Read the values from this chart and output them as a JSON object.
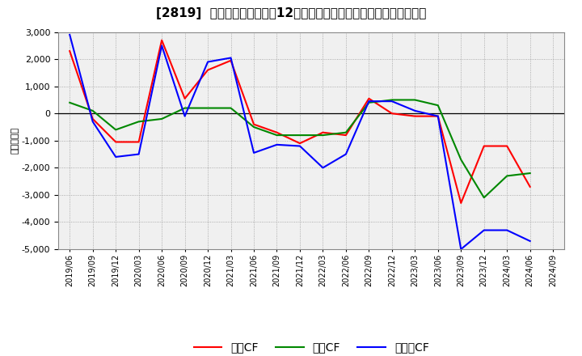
{
  "title": "[2819]  キャッシュフローの12か月移動合計の対前年同期増減額の推移",
  "ylabel": "（百万円）",
  "x_labels": [
    "2019/06",
    "2019/09",
    "2019/12",
    "2020/03",
    "2020/06",
    "2020/09",
    "2020/12",
    "2021/03",
    "2021/06",
    "2021/09",
    "2021/12",
    "2022/03",
    "2022/06",
    "2022/09",
    "2022/12",
    "2023/03",
    "2023/06",
    "2023/09",
    "2023/12",
    "2024/03",
    "2024/06",
    "2024/09"
  ],
  "operating_cf": [
    2300,
    -200,
    -1050,
    -1050,
    2700,
    550,
    1600,
    1950,
    -400,
    -700,
    -1100,
    -700,
    -800,
    550,
    0,
    -100,
    -100,
    -3300,
    -1200,
    -1200,
    -2700,
    null
  ],
  "investing_cf": [
    400,
    100,
    -600,
    -300,
    -200,
    200,
    200,
    200,
    -500,
    -800,
    -800,
    -800,
    -700,
    400,
    500,
    500,
    300,
    -1700,
    -3100,
    -2300,
    -2200,
    null
  ],
  "free_cf": [
    2900,
    -300,
    -1600,
    -1500,
    2500,
    -100,
    1900,
    2050,
    -1450,
    -1150,
    -1200,
    -2000,
    -1500,
    450,
    450,
    100,
    -100,
    -5000,
    -4300,
    -4300,
    -4700,
    null
  ],
  "operating_color": "#ff0000",
  "investing_color": "#008800",
  "free_color": "#0000ff",
  "ylim": [
    -5000,
    3000
  ],
  "yticks": [
    -5000,
    -4000,
    -3000,
    -2000,
    -1000,
    0,
    1000,
    2000,
    3000
  ],
  "bg_color": "#ffffff",
  "plot_bg_color": "#f0f0f0",
  "grid_color": "#999999",
  "legend_labels": [
    "営業CF",
    "投資CF",
    "フリーCF"
  ]
}
